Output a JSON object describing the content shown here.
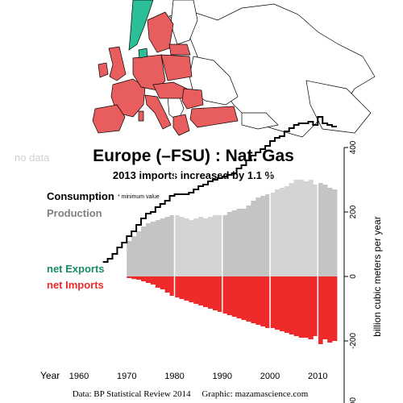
{
  "map": {
    "no_data_label": "no data",
    "colors": {
      "imports": "#e85d5d",
      "exports": "#2bbf97",
      "no_data": "#ffffff",
      "border": "#000000"
    }
  },
  "chart_data": {
    "type": "area",
    "title": "Europe (–FSU) :  Nat. Gas",
    "subtitle": "2013 imports increased by 1.1 %",
    "legend": {
      "consumption": "Consumption",
      "consumption_note": "* minimum value",
      "production": "Production",
      "net_exports": "net Exports",
      "net_imports": "net Imports"
    },
    "xlabel": "Year",
    "ylabel": "billion cubic meters per year",
    "xlim": [
      1960,
      2014
    ],
    "ylim": [
      -400,
      400
    ],
    "x_ticks": [
      1960,
      1970,
      1980,
      1990,
      2000,
      2010
    ],
    "y_ticks": [
      400,
      200,
      0,
      -200,
      -400
    ],
    "grid": false,
    "colors": {
      "consumption": "#000000",
      "production": "#c4c4c4",
      "net_exports": "#1a8a6a",
      "net_imports": "#ee2a2a"
    },
    "years": [
      1965,
      1966,
      1967,
      1968,
      1969,
      1970,
      1971,
      1972,
      1973,
      1974,
      1975,
      1976,
      1977,
      1978,
      1979,
      1980,
      1981,
      1982,
      1983,
      1984,
      1985,
      1986,
      1987,
      1988,
      1989,
      1990,
      1991,
      1992,
      1993,
      1994,
      1995,
      1996,
      1997,
      1998,
      1999,
      2000,
      2001,
      2002,
      2003,
      2004,
      2005,
      2006,
      2007,
      2008,
      2009,
      2010,
      2011,
      2012,
      2013
    ],
    "consumption": [
      45,
      55,
      70,
      90,
      105,
      125,
      140,
      160,
      180,
      195,
      200,
      215,
      225,
      235,
      250,
      255,
      255,
      255,
      260,
      270,
      280,
      285,
      295,
      300,
      305,
      310,
      315,
      320,
      335,
      345,
      360,
      375,
      385,
      395,
      405,
      420,
      430,
      435,
      450,
      460,
      470,
      475,
      475,
      480,
      470,
      495,
      475,
      470,
      465
    ],
    "production": [
      null,
      null,
      null,
      null,
      null,
      110,
      125,
      140,
      155,
      165,
      170,
      175,
      180,
      185,
      190,
      190,
      185,
      180,
      175,
      180,
      185,
      180,
      185,
      190,
      190,
      190,
      200,
      205,
      210,
      210,
      220,
      235,
      245,
      250,
      255,
      260,
      270,
      275,
      280,
      290,
      300,
      300,
      295,
      300,
      285,
      290,
      285,
      275,
      270
    ],
    "net_imports": [
      null,
      null,
      null,
      null,
      null,
      -5,
      -8,
      -10,
      -15,
      -20,
      -25,
      -35,
      -40,
      -50,
      -60,
      -65,
      -70,
      -75,
      -80,
      -85,
      -90,
      -95,
      -100,
      -105,
      -110,
      -115,
      -120,
      -125,
      -130,
      -135,
      -140,
      -145,
      -150,
      -155,
      -160,
      -160,
      -165,
      -170,
      -175,
      -180,
      -185,
      -190,
      -190,
      -195,
      -185,
      -210,
      -195,
      -205,
      -200
    ],
    "annotation": ""
  },
  "footer": {
    "source": "Data: BP Statistical Review 2014     Graphic: mazamascience.com"
  }
}
